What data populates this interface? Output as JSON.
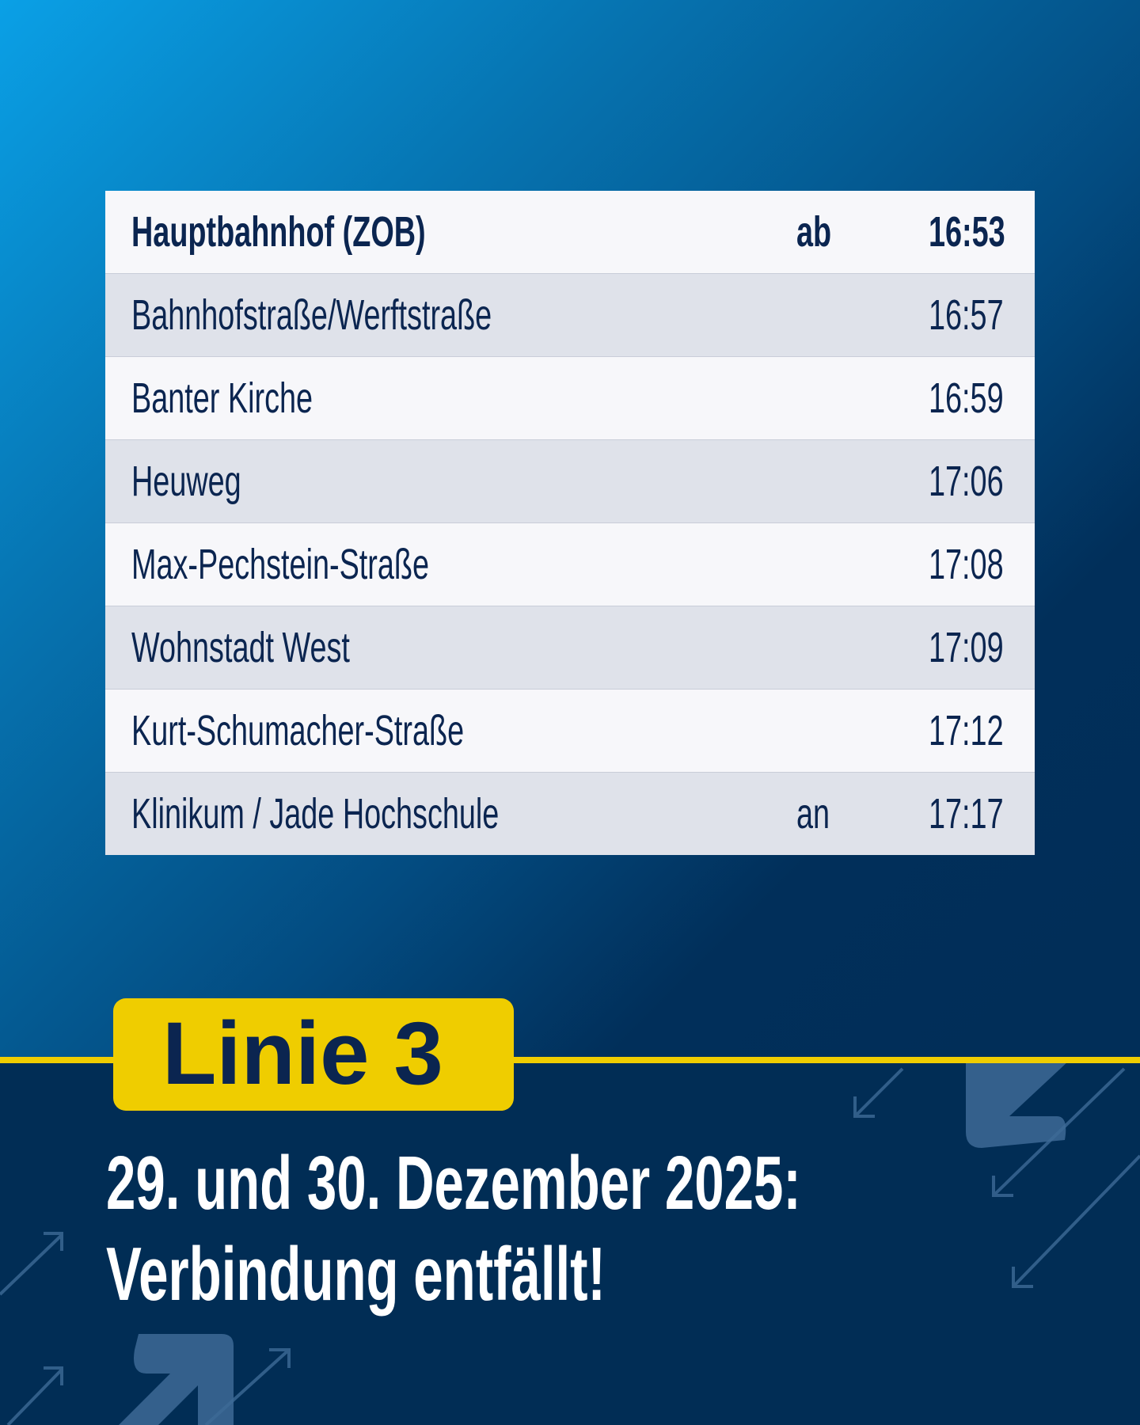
{
  "timetable": {
    "rows": [
      {
        "stop": "Hauptbahnhof (ZOB)",
        "mark": "ab",
        "time": "16:53"
      },
      {
        "stop": "Bahnhofstraße/Werftstraße",
        "mark": "",
        "time": "16:57"
      },
      {
        "stop": "Banter Kirche",
        "mark": "",
        "time": "16:59"
      },
      {
        "stop": "Heuweg",
        "mark": "",
        "time": "17:06"
      },
      {
        "stop": "Max-Pechstein-Straße",
        "mark": "",
        "time": "17:08"
      },
      {
        "stop": "Wohnstadt West",
        "mark": "",
        "time": "17:09"
      },
      {
        "stop": "Kurt-Schumacher-Straße",
        "mark": "",
        "time": "17:12"
      },
      {
        "stop": "Klinikum / Jade Hochschule",
        "mark": "an",
        "time": "17:17"
      }
    ]
  },
  "badge": {
    "label": "Linie 3"
  },
  "headline": {
    "line1": "29. und 30. Dezember 2025:",
    "line2": "Verbindung entfällt!"
  },
  "colors": {
    "accent": "#efcd00",
    "navy": "#012d55",
    "text": "#0b2550"
  }
}
